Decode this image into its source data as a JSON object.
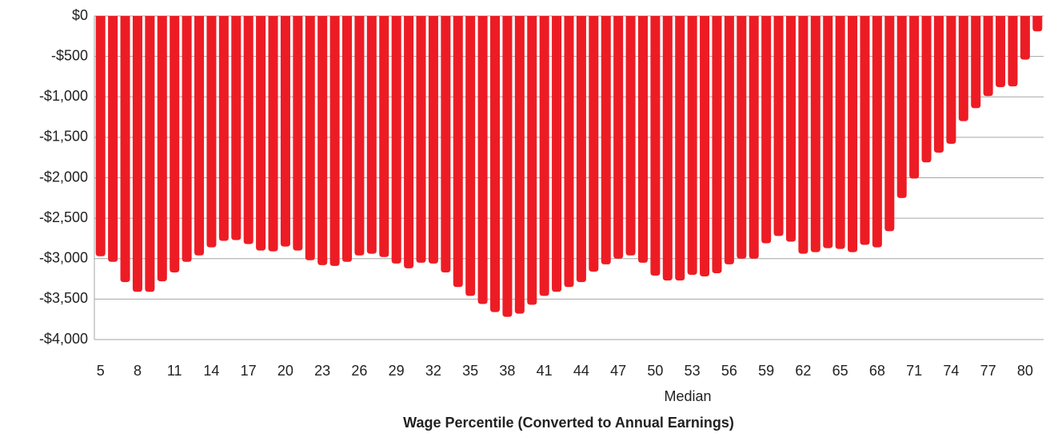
{
  "chart_data": {
    "type": "bar",
    "x_label": "Wage Percentile (Converted to Annual Earnings)",
    "annotation": "Median",
    "categories": [
      "5",
      null,
      null,
      "8",
      null,
      null,
      "11",
      null,
      null,
      "14",
      null,
      null,
      "17",
      null,
      null,
      "20",
      null,
      null,
      "23",
      null,
      null,
      "26",
      null,
      null,
      "29",
      null,
      null,
      "32",
      null,
      null,
      "35",
      null,
      null,
      "38",
      null,
      null,
      "41",
      null,
      null,
      "44",
      null,
      null,
      "47",
      null,
      null,
      "50",
      null,
      null,
      "53",
      null,
      null,
      "56",
      null,
      null,
      "59",
      null,
      null,
      "62",
      null,
      null,
      "65",
      null,
      null,
      "68",
      null,
      null,
      "71",
      null,
      null,
      "74",
      null,
      null,
      "77",
      null,
      null,
      "80",
      null
    ],
    "values": [
      -2970,
      -3040,
      -3290,
      -3410,
      -3410,
      -3280,
      -3170,
      -3040,
      -2960,
      -2860,
      -2780,
      -2770,
      -2820,
      -2900,
      -2910,
      -2850,
      -2900,
      -3020,
      -3080,
      -3090,
      -3040,
      -2960,
      -2940,
      -2980,
      -3060,
      -3120,
      -3050,
      -3060,
      -3170,
      -3350,
      -3460,
      -3560,
      -3660,
      -3720,
      -3680,
      -3570,
      -3460,
      -3410,
      -3350,
      -3290,
      -3160,
      -3070,
      -3000,
      -2960,
      -3050,
      -3210,
      -3270,
      -3270,
      -3200,
      -3220,
      -3180,
      -3070,
      -3000,
      -3000,
      -2810,
      -2720,
      -2790,
      -2940,
      -2920,
      -2870,
      -2880,
      -2920,
      -2830,
      -2860,
      -2660,
      -2250,
      -2010,
      -1810,
      -1690,
      -1580,
      -1300,
      -1140,
      -990,
      -880,
      -870,
      -540,
      -190
    ],
    "color": "#ed1c24",
    "ylim": [
      -4000,
      0
    ],
    "yticks": [
      {
        "value": 0,
        "label": "$0"
      },
      {
        "value": -500,
        "label": "-$500"
      },
      {
        "value": -1000,
        "label": "-$1,000"
      },
      {
        "value": -1500,
        "label": "-$1,500"
      },
      {
        "value": -2000,
        "label": "-$2,000"
      },
      {
        "value": -2500,
        "label": "-$2,500"
      },
      {
        "value": -3000,
        "label": "-$3,000"
      },
      {
        "value": -3500,
        "label": "-$3,500"
      },
      {
        "value": -4000,
        "label": "-$4,000"
      }
    ],
    "grid": true
  }
}
